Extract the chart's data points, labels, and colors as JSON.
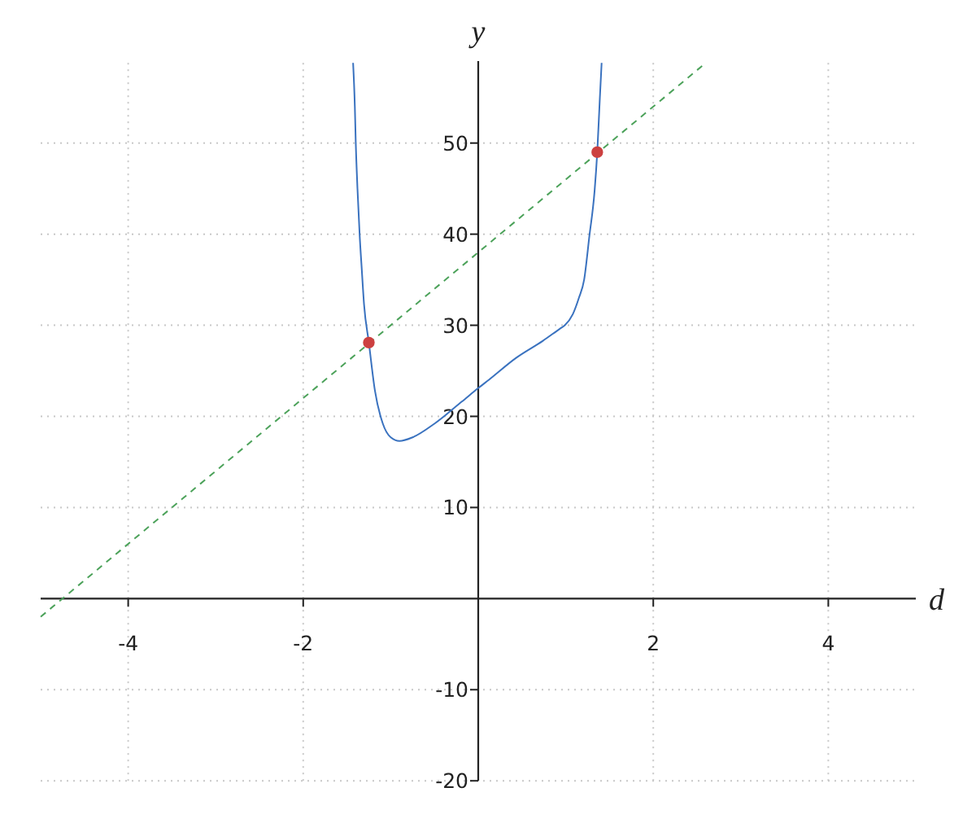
{
  "chart_data": {
    "type": "line",
    "xlabel": "d",
    "ylabel": "y",
    "xlim": [
      -5,
      5
    ],
    "ylim": [
      -20,
      59
    ],
    "xticks": [
      -4,
      -2,
      2,
      4
    ],
    "yticks": [
      -20,
      -10,
      10,
      20,
      30,
      40,
      50
    ],
    "grid": true,
    "series": [
      {
        "color": "#3a72bf",
        "x": [
          -1.43,
          -1.41,
          -1.4,
          -1.38,
          -1.355,
          -1.33,
          -1.305,
          -1.25,
          -1.18,
          -1.09,
          -1.0,
          -0.9,
          -0.75,
          -0.5,
          -0.19,
          0,
          0.12,
          0.43,
          0.74,
          0.93,
          0.99,
          1.08,
          1.15,
          1.21,
          1.27,
          1.33,
          1.36,
          1.39,
          1.41
        ],
        "values": [
          58.8,
          54,
          50.2,
          45,
          39.9,
          36,
          32.3,
          28.1,
          22.8,
          19.2,
          17.7,
          17.3,
          17.7,
          19.2,
          21.6,
          23.1,
          24.0,
          26.4,
          28.3,
          29.6,
          30.0,
          31.2,
          33,
          35,
          39.8,
          44.8,
          49,
          55,
          58.8
        ]
      },
      {
        "color": "#4ca25a",
        "line_style": "dashed",
        "x": [
          -5,
          2.6
        ],
        "values": [
          -2,
          58.8
        ]
      },
      {
        "type": "scatter",
        "color": "#cc4040",
        "marker": "circle",
        "x": [
          -1.25,
          1.36
        ],
        "values": [
          28.1,
          49
        ]
      }
    ]
  }
}
